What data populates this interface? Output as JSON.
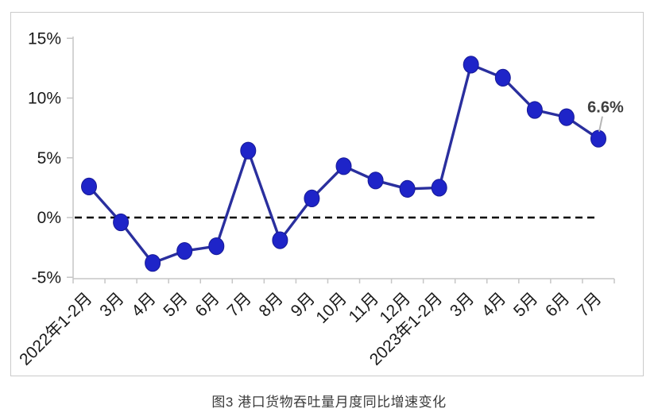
{
  "chart_data": {
    "type": "line",
    "title": "图3 港口货物吞吐量月度同比增速变化",
    "xlabel": "",
    "ylabel": "",
    "categories": [
      "2022年1-2月",
      "3月",
      "4月",
      "5月",
      "6月",
      "7月",
      "8月",
      "9月",
      "10月",
      "11月",
      "12月",
      "2023年1-2月",
      "3月",
      "4月",
      "5月",
      "6月",
      "7月"
    ],
    "series": [
      {
        "name": "港口货物吞吐量月度同比增速",
        "values": [
          2.6,
          -0.4,
          -3.8,
          -2.8,
          -2.4,
          5.6,
          -1.9,
          1.6,
          4.3,
          3.1,
          2.4,
          2.5,
          12.8,
          11.7,
          9.0,
          8.4,
          6.6
        ]
      }
    ],
    "ylim": [
      -5,
      15
    ],
    "yticks": [
      15,
      10,
      5,
      0,
      -5
    ],
    "ytick_labels": [
      "15%",
      "10%",
      "5%",
      "0%",
      "-5%"
    ],
    "grid": false,
    "legend": "none",
    "zero_line_dashed": true,
    "annotation": {
      "text": "6.6%",
      "point_index": 16
    },
    "colors": {
      "line": "#2a2f9e",
      "marker_fill": "#1e24c8",
      "marker_edge": "#171a96",
      "axis": "#c6c6c6",
      "tick_label": "#1a1a1a",
      "zero_line": "#000000",
      "annotation_text": "#3f3f3f",
      "leader_line": "#b5b5b5",
      "frame_border": "#cbcbcb",
      "caption_text": "#3a3a3a"
    }
  }
}
